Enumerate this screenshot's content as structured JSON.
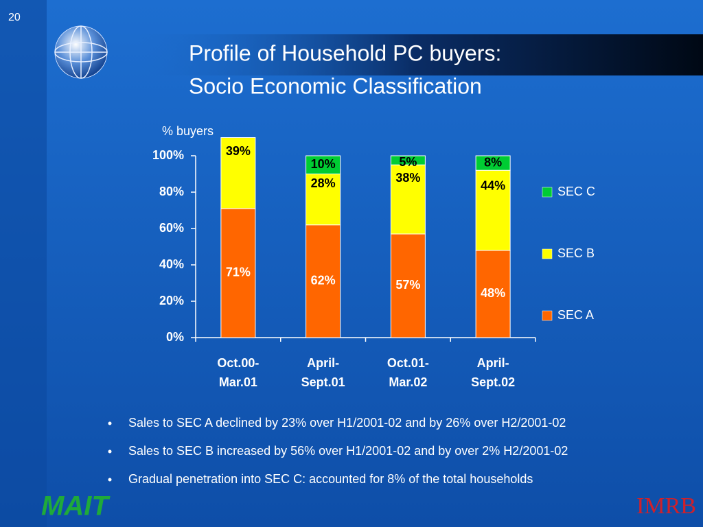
{
  "slide_number": "20",
  "title": [
    "Profile of Household PC buyers:",
    "Socio Economic Classification"
  ],
  "bullets": [
    "Sales to SEC A declined by 23% over H1/2001-02 and by 26% over H2/2001-02",
    "Sales to SEC B increased by 56% over H1/2001-02 and by over 2% H2/2001-02",
    "Gradual penetration into SEC C: accounted for 8% of the total households"
  ],
  "logos": {
    "left": "MAIT",
    "right": "IMRB"
  },
  "chart_data": {
    "type": "stacked_bar",
    "ylabel": "% buyers",
    "categories": [
      "Oct.00-\nMar.01",
      "April-\nSept.01",
      "Oct.01-\nMar.02",
      "April-\nSept.02"
    ],
    "series": [
      {
        "name": "SEC  A",
        "color": "#ff6600",
        "label_color": "#ffffff",
        "values": [
          71,
          62,
          57,
          48
        ],
        "value_labels": [
          "71%",
          "62%",
          "57%",
          "48%"
        ]
      },
      {
        "name": "SEC  B",
        "color": "#ffff00",
        "label_color": "#000000",
        "values": [
          39,
          28,
          38,
          44
        ],
        "value_labels": [
          "39%",
          "28%",
          "38%",
          "44%"
        ]
      },
      {
        "name": "SEC C",
        "color": "#00cc33",
        "label_color": "#000000",
        "values": [
          null,
          10,
          5,
          8
        ],
        "value_labels": [
          null,
          "10%",
          "5%",
          "8%"
        ]
      }
    ],
    "ylim": [
      0,
      100
    ],
    "yticks": [
      {
        "value": 0,
        "label": "0%"
      },
      {
        "value": 20,
        "label": "20%"
      },
      {
        "value": 40,
        "label": "40%"
      },
      {
        "value": 60,
        "label": "60%"
      },
      {
        "value": 80,
        "label": "80%"
      },
      {
        "value": 100,
        "label": "100%"
      }
    ],
    "legend": "right"
  }
}
